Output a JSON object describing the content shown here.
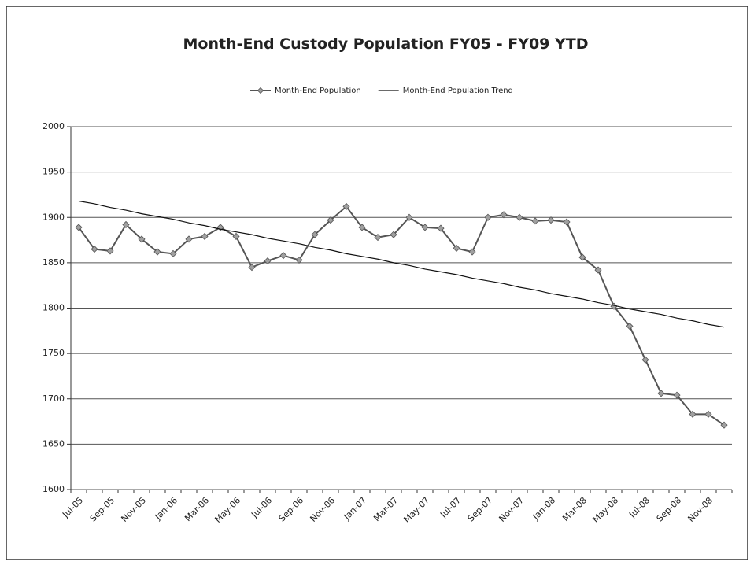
{
  "chart_data": {
    "type": "line",
    "title": "Month-End Custody Population FY05 - FY09 YTD",
    "categories": [
      "Jul-05",
      null,
      "Sep-05",
      null,
      "Nov-05",
      null,
      "Jan-06",
      null,
      "Mar-06",
      null,
      "May-06",
      null,
      "Jul-06",
      null,
      "Sep-06",
      null,
      "Nov-06",
      null,
      "Jan-07",
      null,
      "Mar-07",
      null,
      "May-07",
      null,
      "Jul-07",
      null,
      "Sep-07",
      null,
      "Nov-07",
      null,
      "Jan-08",
      null,
      "Mar-08",
      null,
      "May-08",
      null,
      "Jul-08",
      null,
      "Sep-08",
      null,
      "Nov-08",
      null
    ],
    "series": [
      {
        "name": "Month-End Population",
        "color": "#555555",
        "marker": "diamond",
        "marker_color": "#a0a0a0",
        "values": [
          1889,
          1865,
          1863,
          1892,
          1876,
          1862,
          1860,
          1876,
          1879,
          1889,
          1879,
          1845,
          1852,
          1858,
          1853,
          1881,
          1897,
          1912,
          1889,
          1878,
          1881,
          1900,
          1889,
          1888,
          1866,
          1862,
          1900,
          1903,
          1900,
          1896,
          1897,
          1895,
          1856,
          1842,
          1802,
          1780,
          1743,
          1706,
          1704,
          1683,
          1683,
          1671
        ]
      },
      {
        "name": "Month-End Population Trend",
        "color": "#111111",
        "marker": "none",
        "values": [
          1918,
          1915,
          1911,
          1908,
          1904,
          1901,
          1898,
          1894,
          1891,
          1887,
          1884,
          1881,
          1877,
          1874,
          1871,
          1867,
          1864,
          1860,
          1857,
          1854,
          1850,
          1847,
          1843,
          1840,
          1837,
          1833,
          1830,
          1827,
          1823,
          1820,
          1816,
          1813,
          1810,
          1806,
          1803,
          1799,
          1796,
          1793,
          1789,
          1786,
          1782,
          1779
        ]
      }
    ],
    "ylim": [
      1600,
      2000
    ],
    "yticks": [
      1600,
      1650,
      1700,
      1750,
      1800,
      1850,
      1900,
      1950,
      2000
    ],
    "grid": true,
    "legend": "top"
  }
}
